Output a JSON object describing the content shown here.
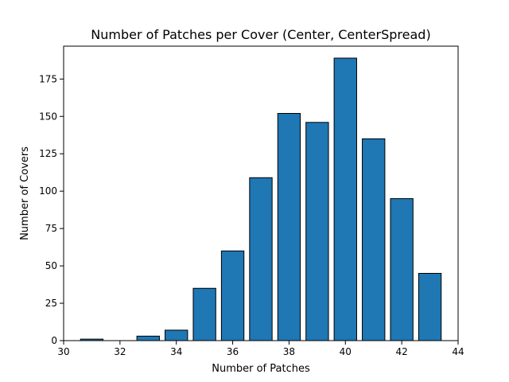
{
  "chart_data": {
    "type": "bar",
    "title": "Number of Patches per Cover (Center, CenterSpread)",
    "xlabel": "Number of Patches",
    "ylabel": "Number of Covers",
    "xlim": [
      30,
      44
    ],
    "ylim": [
      0,
      197
    ],
    "x_ticks": [
      "30",
      "32",
      "34",
      "36",
      "38",
      "40",
      "42",
      "44"
    ],
    "y_ticks": [
      "0",
      "25",
      "50",
      "75",
      "100",
      "125",
      "150",
      "175"
    ],
    "grid": false,
    "bar_color": "#1f77b4",
    "bar_edge_color": "#000000",
    "x": [
      31,
      32,
      33,
      34,
      35,
      36,
      37,
      38,
      39,
      40,
      41,
      42,
      43
    ],
    "values": [
      1,
      0,
      3,
      7,
      35,
      60,
      109,
      152,
      146,
      189,
      135,
      95,
      45
    ]
  }
}
